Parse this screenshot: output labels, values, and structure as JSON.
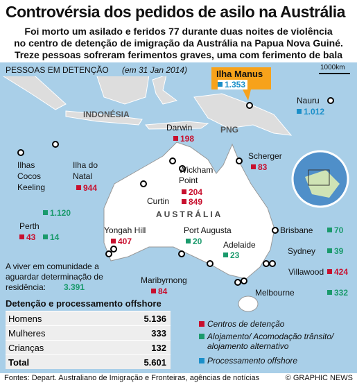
{
  "title": "Controvérsia dos pedidos de asilo na Austrália",
  "subtitle": [
    "Foi morto um asilado e feridos 77 durante duas noites de violência",
    "no centro de detenção de imigração da Austrália na Papua Nova Guiné.",
    "Treze pessoas sofreram ferimentos graves, uma com ferimento de bala"
  ],
  "section": {
    "heading": "PESSOAS EM DETENÇÃO",
    "date": "(em 31 Jan 2014)"
  },
  "scale": "1000km",
  "map_labels": [
    "INDONÉSIA",
    "PNG",
    "AUSTRÁLIA"
  ],
  "locations": [
    {
      "name": "Ilha Manus",
      "values": [
        {
          "value": "1.353",
          "type": "offshore"
        }
      ]
    },
    {
      "name": "Nauru",
      "values": [
        {
          "value": "1.012",
          "type": "offshore"
        }
      ]
    },
    {
      "name": "Darwin",
      "values": [
        {
          "value": "198",
          "type": "detencao"
        }
      ]
    },
    {
      "name": "Scherger",
      "values": [
        {
          "value": "83",
          "type": "detencao"
        }
      ]
    },
    {
      "name": "Wickham Point",
      "values": [
        {
          "value": "204",
          "type": "detencao"
        }
      ]
    },
    {
      "name": "Curtin",
      "values": [
        {
          "value": "849",
          "type": "detencao"
        }
      ]
    },
    {
      "name": "Ilhas Cocos Keeling",
      "values": []
    },
    {
      "name": "Ilha do Natal",
      "values": [
        {
          "value": "944",
          "type": "detencao"
        },
        {
          "value": "1.120",
          "type": "transito"
        }
      ]
    },
    {
      "name": "Perth",
      "values": [
        {
          "value": "43",
          "type": "detencao"
        },
        {
          "value": "14",
          "type": "transito"
        }
      ]
    },
    {
      "name": "Yongah Hill",
      "values": [
        {
          "value": "407",
          "type": "detencao"
        }
      ]
    },
    {
      "name": "Port Augusta",
      "values": [
        {
          "value": "20",
          "type": "transito"
        }
      ]
    },
    {
      "name": "Adelaide",
      "values": [
        {
          "value": "23",
          "type": "transito"
        }
      ]
    },
    {
      "name": "Brisbane",
      "values": [
        {
          "value": "70",
          "type": "transito"
        }
      ]
    },
    {
      "name": "Sydney",
      "values": [
        {
          "value": "39",
          "type": "transito"
        }
      ]
    },
    {
      "name": "Villawood",
      "values": [
        {
          "value": "424",
          "type": "detencao"
        }
      ]
    },
    {
      "name": "Maribyrnong",
      "values": [
        {
          "value": "84",
          "type": "detencao"
        }
      ]
    },
    {
      "name": "Melbourne",
      "values": [
        {
          "value": "332",
          "type": "transito"
        }
      ]
    }
  ],
  "community": {
    "text": "A viver em comunidade a aguardar determinação de residência:",
    "value": "3.391"
  },
  "table": {
    "title": "Detenção e processamento offshore",
    "rows": [
      [
        "Homens",
        "5.136"
      ],
      [
        "Mulheres",
        "333"
      ],
      [
        "Crianças",
        "132"
      ],
      [
        "Total",
        "5.601"
      ]
    ]
  },
  "legend": [
    {
      "label": "Centros de detenção",
      "type": "detencao"
    },
    {
      "label": "Alojamento/ Acomodação trânsito/ alojamento alternativo",
      "type": "transito"
    },
    {
      "label": "Processamento offshore",
      "type": "offshore"
    }
  ],
  "footer": {
    "source": "Fontes: Depart. Australiano de Imigração e Fronteiras, agências de notícias",
    "credit": "© GRAPHIC NEWS"
  }
}
